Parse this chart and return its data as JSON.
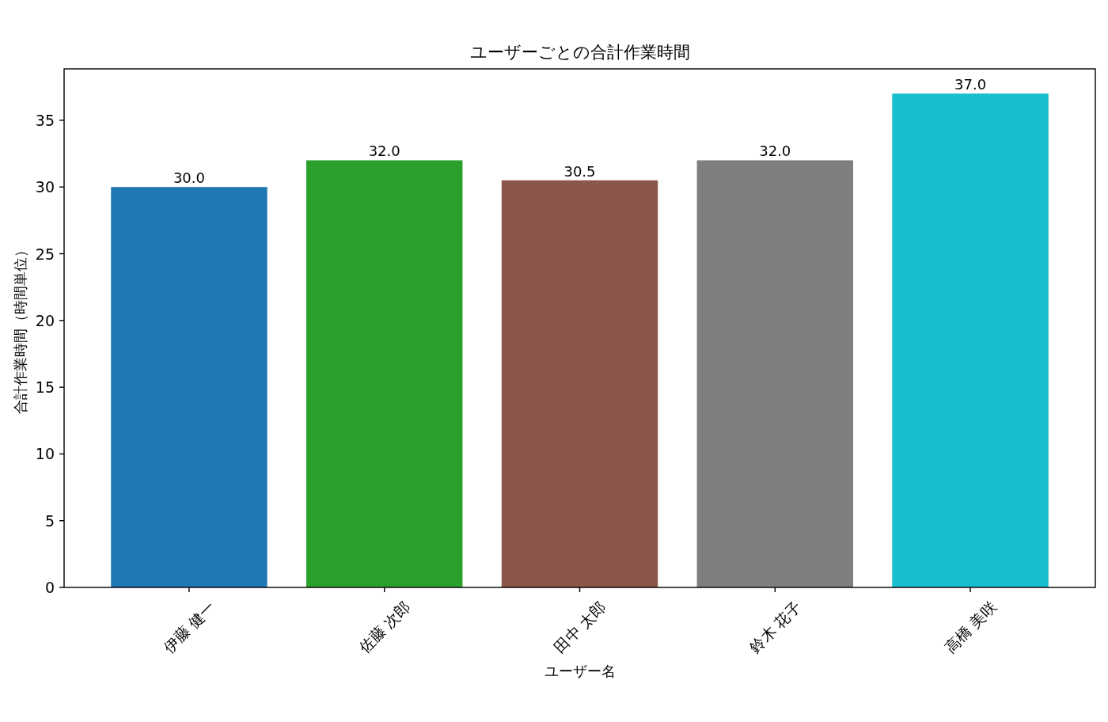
{
  "chart_data": {
    "type": "bar",
    "title": "ユーザーごとの合計作業時間",
    "xlabel": "ユーザー名",
    "ylabel": "合計作業時間（時間単位）",
    "categories": [
      "伊藤 健一",
      "佐藤 次郎",
      "田中 太郎",
      "鈴木 花子",
      "高橋 美咲"
    ],
    "values": [
      30,
      32,
      30.5,
      32,
      37
    ],
    "colors": [
      "#1f77b4",
      "#2ca02c",
      "#8c564b",
      "#7f7f7f",
      "#17becf"
    ],
    "value_labels": [
      "30.0",
      "32.0",
      "30.5",
      "32.0",
      "37.0"
    ],
    "ylim": [
      0,
      38.85
    ],
    "yticks": [
      0,
      5,
      10,
      15,
      20,
      25,
      30,
      35
    ]
  }
}
